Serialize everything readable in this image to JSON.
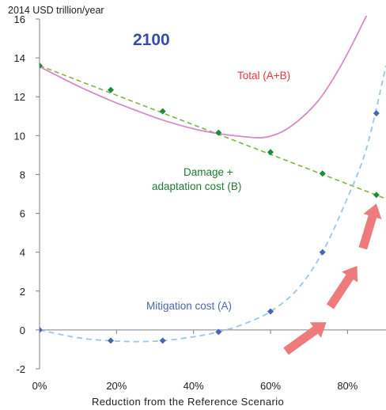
{
  "chart_data": {
    "type": "line",
    "title": "2100",
    "ylabel": "2014 USD trillion/year",
    "xlabel": "Reduction from the Reference  Scenario",
    "xlim": [
      0,
      0.9
    ],
    "ylim": [
      -2,
      16
    ],
    "x_ticks": [
      "0%",
      "20%",
      "40%",
      "60%",
      "80%"
    ],
    "x_tick_values": [
      0,
      0.2,
      0.4,
      0.6,
      0.8
    ],
    "y_ticks": [
      "-2",
      "0",
      "2",
      "4",
      "6",
      "8",
      "10",
      "12",
      "14",
      "16"
    ],
    "y_tick_values": [
      -2,
      0,
      2,
      4,
      6,
      8,
      10,
      12,
      14,
      16
    ],
    "colors": {
      "total": "#d48bc7",
      "damage": "#7ab648",
      "damage_marker": "#1f8a3a",
      "mitigation": "#9cc6e8",
      "mitigation_marker": "#4a66b0",
      "arrow": "#ee7b7b",
      "axis": "#7f7f7f"
    },
    "series": [
      {
        "key": "damage",
        "name": "Damage + adaptation cost (B)",
        "label_lines": [
          "Damage +",
          "adaptation cost (B)"
        ],
        "style": "dashed-with-markers",
        "points": [
          [
            0,
            13.6
          ],
          [
            0.185,
            12.35
          ],
          [
            0.32,
            11.25
          ],
          [
            0.465,
            10.15
          ],
          [
            0.6,
            9.15
          ],
          [
            0.735,
            8.05
          ],
          [
            0.875,
            6.95
          ]
        ],
        "trend": [
          [
            0,
            13.6
          ],
          [
            0.9,
            6.75
          ]
        ]
      },
      {
        "key": "mitigation",
        "name": "Mitigation cost (A)",
        "style": "dashed-with-markers",
        "points": [
          [
            0,
            0
          ],
          [
            0.185,
            -0.55
          ],
          [
            0.32,
            -0.55
          ],
          [
            0.465,
            -0.1
          ],
          [
            0.6,
            0.95
          ],
          [
            0.735,
            4.0
          ],
          [
            0.875,
            11.15
          ]
        ],
        "curve": [
          [
            0,
            0
          ],
          [
            0.1,
            -0.4
          ],
          [
            0.18,
            -0.55
          ],
          [
            0.25,
            -0.6
          ],
          [
            0.32,
            -0.55
          ],
          [
            0.4,
            -0.35
          ],
          [
            0.465,
            -0.1
          ],
          [
            0.53,
            0.3
          ],
          [
            0.6,
            0.95
          ],
          [
            0.67,
            2.1
          ],
          [
            0.735,
            4.0
          ],
          [
            0.8,
            6.8
          ],
          [
            0.85,
            9.4
          ],
          [
            0.9,
            13.6
          ]
        ]
      },
      {
        "key": "total",
        "name": "Total (A+B)",
        "style": "solid",
        "curve": [
          [
            0,
            13.55
          ],
          [
            0.1,
            12.55
          ],
          [
            0.185,
            11.8
          ],
          [
            0.25,
            11.3
          ],
          [
            0.32,
            10.8
          ],
          [
            0.4,
            10.35
          ],
          [
            0.465,
            10.1
          ],
          [
            0.53,
            9.95
          ],
          [
            0.58,
            9.9
          ],
          [
            0.63,
            10.2
          ],
          [
            0.68,
            10.9
          ],
          [
            0.73,
            11.95
          ],
          [
            0.78,
            13.5
          ],
          [
            0.82,
            15.0
          ],
          [
            0.85,
            16.2
          ]
        ]
      }
    ],
    "arrows": [
      {
        "from": [
          0.64,
          -1.1
        ],
        "to": [
          0.745,
          0.4
        ]
      },
      {
        "from": [
          0.755,
          1.2
        ],
        "to": [
          0.825,
          3.3
        ]
      },
      {
        "from": [
          0.84,
          4.2
        ],
        "to": [
          0.875,
          6.5
        ]
      }
    ]
  }
}
